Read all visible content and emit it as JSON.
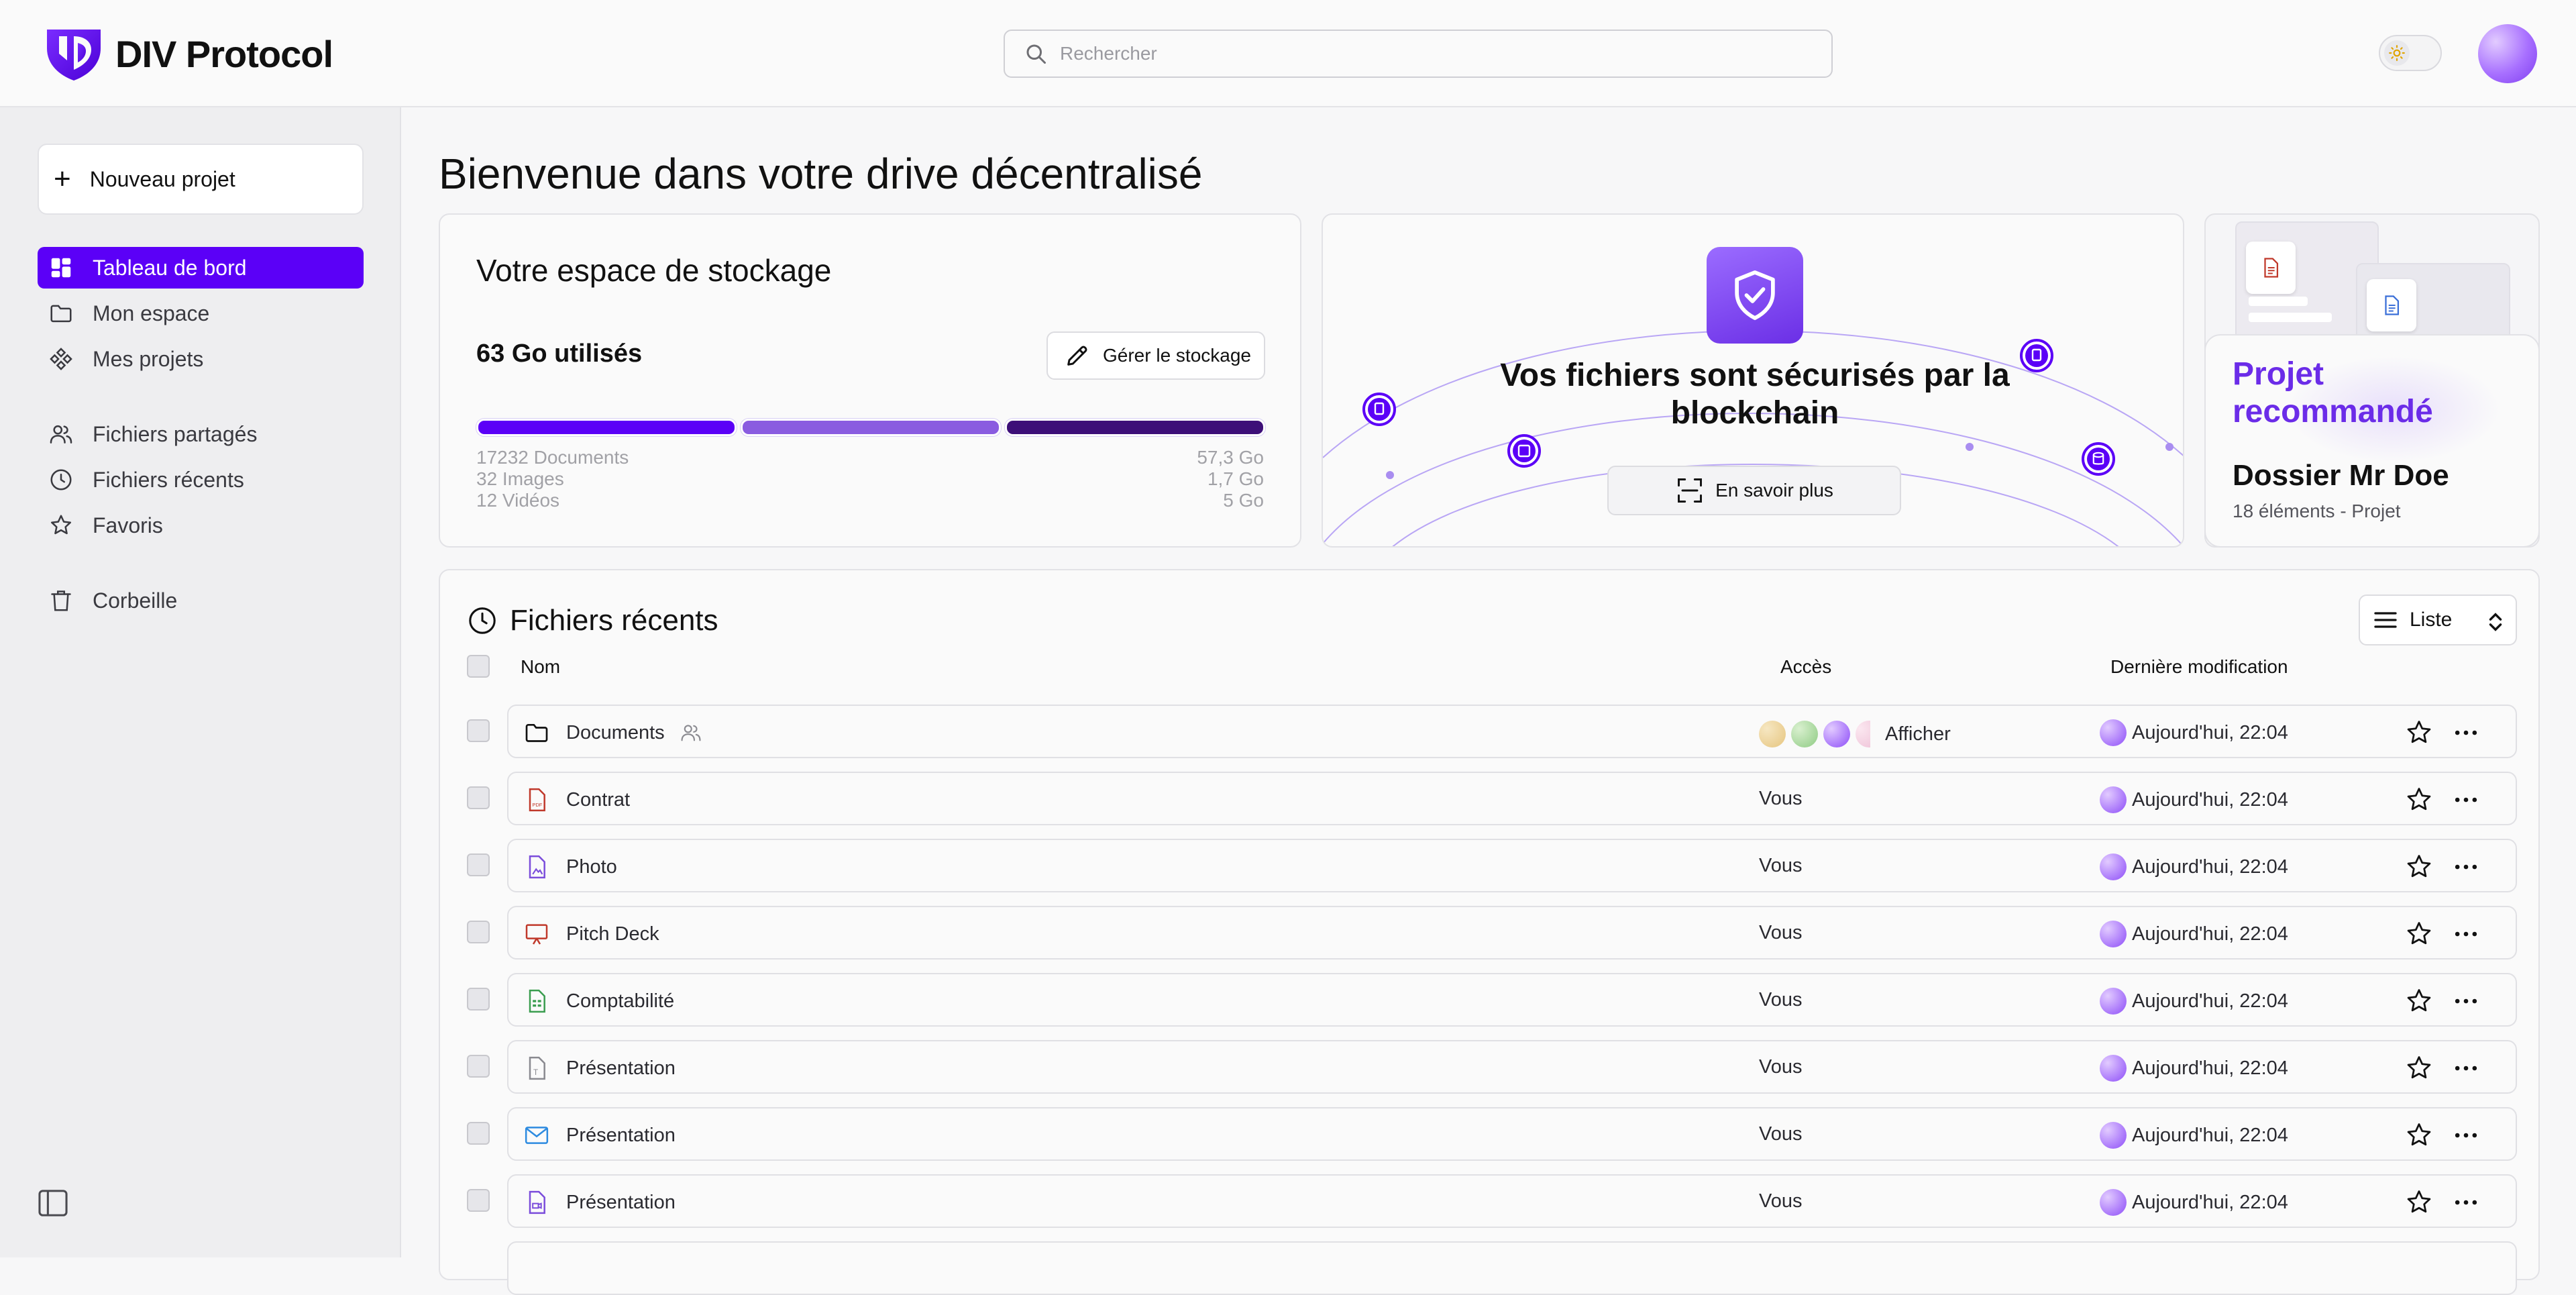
{
  "app": {
    "name": "DIV Protocol"
  },
  "search": {
    "placeholder": "Rechercher"
  },
  "sidebar": {
    "new_project": "Nouveau projet",
    "items": [
      {
        "label": "Tableau de bord",
        "icon": "dashboard-icon",
        "active": true
      },
      {
        "label": "Mon espace",
        "icon": "folder-icon"
      },
      {
        "label": "Mes projets",
        "icon": "projects-icon"
      },
      {
        "label": "Fichiers partagés",
        "icon": "users-icon"
      },
      {
        "label": "Fichiers récents",
        "icon": "clock-icon"
      },
      {
        "label": "Favoris",
        "icon": "star-icon"
      },
      {
        "label": "Corbeille",
        "icon": "trash-icon"
      }
    ]
  },
  "main": {
    "title": "Bienvenue dans votre drive décentralisé"
  },
  "storage": {
    "title": "Votre espace de stockage",
    "used": "63 Go utilisés",
    "manage": "Gérer le stockage",
    "segments": [
      {
        "label": "Documents",
        "value": 57.3,
        "color": "#5b00f7"
      },
      {
        "label": "Images",
        "value": 1.7,
        "color": "#8a5ce0"
      },
      {
        "label": "Vidéos",
        "value": 5,
        "color": "#3d0f78"
      }
    ],
    "counts": [
      "17232 Documents",
      "32 Images",
      "12 Vidéos"
    ],
    "sizes": [
      "57,3 Go",
      "1,7 Go",
      "5 Go"
    ]
  },
  "blockchain": {
    "title": "Vos fichiers sont sécurisés par la blockchain",
    "button": "En savoir plus"
  },
  "recommended": {
    "tag": "Projet recommandé",
    "name": "Dossier Mr Doe",
    "meta": "18 éléments - Projet"
  },
  "recent": {
    "title": "Fichiers récents",
    "view": "Liste",
    "columns": {
      "name": "Nom",
      "access": "Accès",
      "modified": "Dernière modification"
    },
    "rows": [
      {
        "name": "Documents",
        "type": "folder",
        "shared": true,
        "access": "Afficher",
        "modified": "Aujourd'hui, 22:04"
      },
      {
        "name": "Contrat",
        "type": "pdf",
        "access": "Vous",
        "modified": "Aujourd'hui, 22:04"
      },
      {
        "name": "Photo",
        "type": "image",
        "access": "Vous",
        "modified": "Aujourd'hui, 22:04"
      },
      {
        "name": "Pitch Deck",
        "type": "slides",
        "access": "Vous",
        "modified": "Aujourd'hui, 22:04"
      },
      {
        "name": "Comptabilité",
        "type": "sheet",
        "access": "Vous",
        "modified": "Aujourd'hui, 22:04"
      },
      {
        "name": "Présentation",
        "type": "text",
        "access": "Vous",
        "modified": "Aujourd'hui, 22:04"
      },
      {
        "name": "Présentation",
        "type": "mail",
        "access": "Vous",
        "modified": "Aujourd'hui, 22:04"
      },
      {
        "name": "Présentation",
        "type": "video",
        "access": "Vous",
        "modified": "Aujourd'hui, 22:04"
      }
    ]
  },
  "colors": {
    "accent": "#5b00f7",
    "accent_text": "#6b2ce8"
  }
}
